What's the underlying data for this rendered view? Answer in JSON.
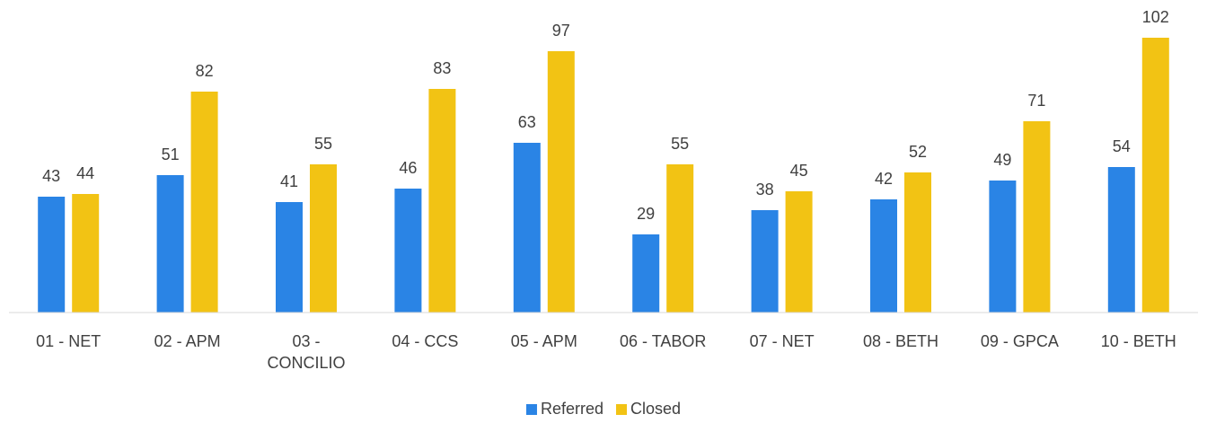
{
  "chart_data": {
    "type": "bar",
    "categories": [
      "01 - NET",
      "02 - APM",
      "03 - CONCILIO",
      "04 - CCS",
      "05 - APM",
      "06 - TABOR",
      "07 - NET",
      "08 - BETH",
      "09 - GPCA",
      "10 - BETH"
    ],
    "series": [
      {
        "name": "Referred",
        "color": "#2a84e5",
        "values": [
          43,
          51,
          41,
          46,
          63,
          29,
          38,
          42,
          49,
          54
        ]
      },
      {
        "name": "Closed",
        "color": "#f2c314",
        "values": [
          44,
          82,
          55,
          83,
          97,
          55,
          45,
          52,
          71,
          102
        ]
      }
    ],
    "ylim": [
      0,
      112
    ],
    "legend": "bottom",
    "data_labels": true
  }
}
